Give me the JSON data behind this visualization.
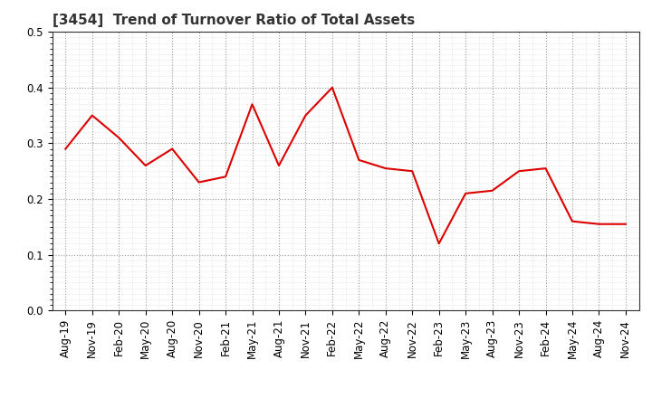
{
  "title": "[3454]  Trend of Turnover Ratio of Total Assets",
  "x_labels": [
    "Aug-19",
    "Nov-19",
    "Feb-20",
    "May-20",
    "Aug-20",
    "Nov-20",
    "Feb-21",
    "May-21",
    "Aug-21",
    "Nov-21",
    "Feb-22",
    "May-22",
    "Aug-22",
    "Nov-22",
    "Feb-23",
    "May-23",
    "Aug-23",
    "Nov-23",
    "Feb-24",
    "May-24",
    "Aug-24",
    "Nov-24"
  ],
  "y_values": [
    0.29,
    0.35,
    0.31,
    0.26,
    0.29,
    0.23,
    0.24,
    0.37,
    0.26,
    0.35,
    0.4,
    0.27,
    0.255,
    0.25,
    0.12,
    0.21,
    0.215,
    0.25,
    0.255,
    0.16,
    0.155,
    0.155
  ],
  "line_color": "#dd0000",
  "line_width": 1.5,
  "ylim": [
    0.0,
    0.5
  ],
  "yticks": [
    0.0,
    0.1,
    0.2,
    0.3,
    0.4,
    0.5
  ],
  "background_color": "#ffffff",
  "major_grid_color": "#999999",
  "minor_grid_color": "#cccccc",
  "title_fontsize": 11,
  "tick_fontsize": 8.5,
  "fig_width": 7.2,
  "fig_height": 4.4,
  "dpi": 100
}
